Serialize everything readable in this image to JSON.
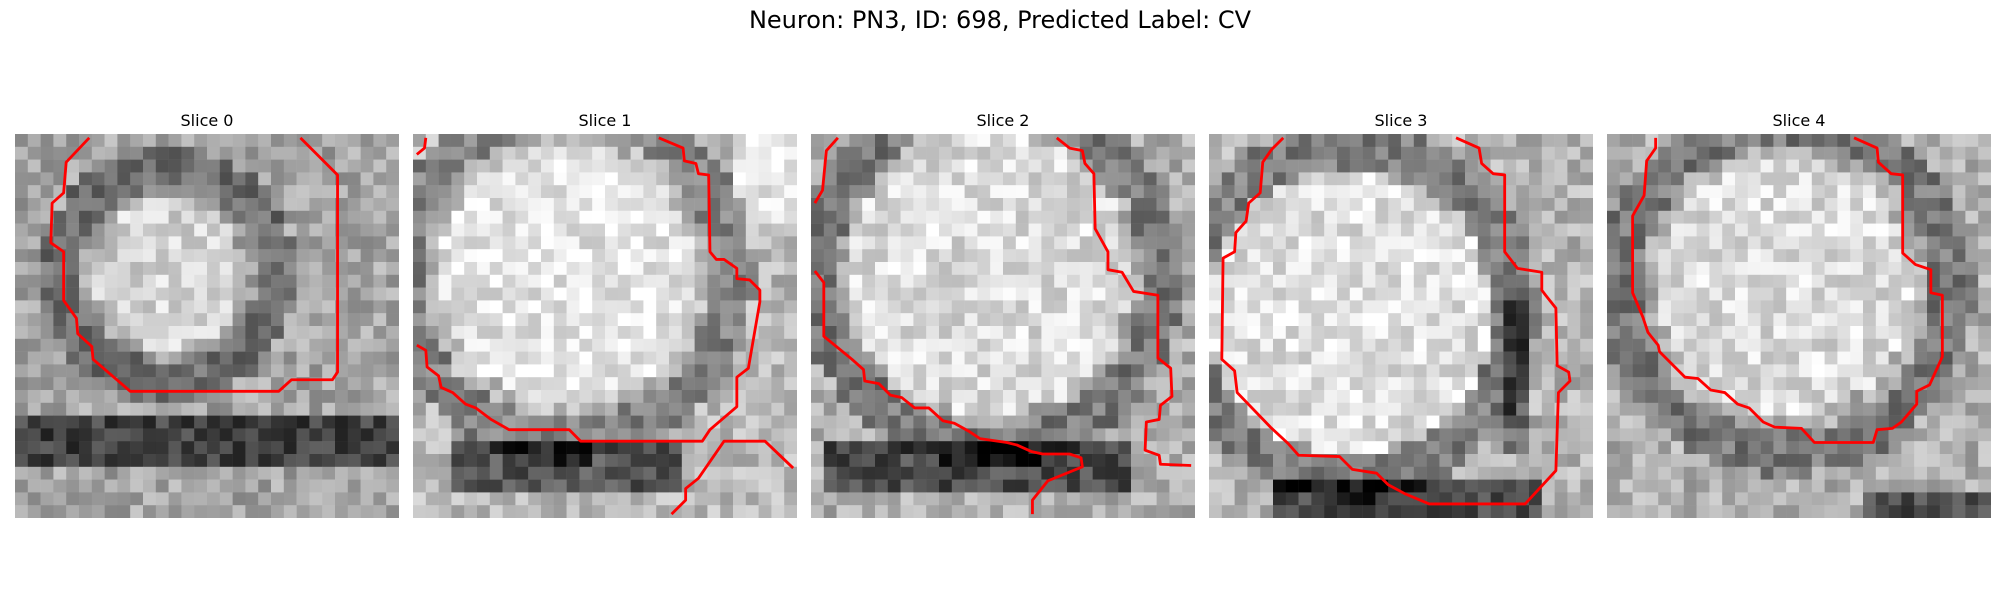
{
  "figure": {
    "title": "Neuron: PN3, ID: 698, Predicted Label: CV",
    "contour_color": "#ff0000",
    "panels": [
      {
        "title": "Slice 0"
      },
      {
        "title": "Slice 1"
      },
      {
        "title": "Slice 2"
      },
      {
        "title": "Slice 3"
      },
      {
        "title": "Slice 4"
      }
    ]
  }
}
